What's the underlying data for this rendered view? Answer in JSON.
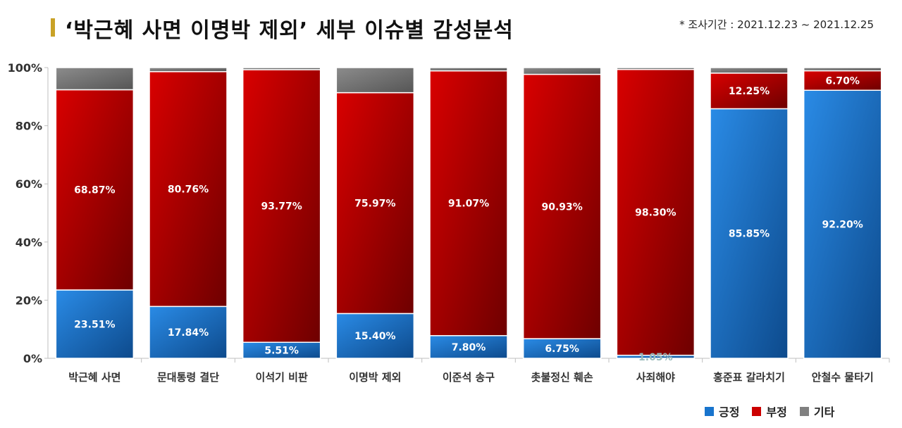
{
  "header": {
    "title": "‘박근혜 사면 이명박 제외’ 세부 이슈별 감성분석",
    "period": "* 조사기간 : 2021.12.23 ~ 2021.12.25"
  },
  "colors": {
    "positive": "#1874cd",
    "positive_dark": "#0d4a8c",
    "negative": "#cc0000",
    "negative_dark": "#7a0000",
    "other": "#808080",
    "other_dark": "#555555",
    "accent": "#c9a227"
  },
  "chart_data": {
    "type": "bar",
    "stacked": true,
    "title": "‘박근혜 사면 이명박 제외’ 세부 이슈별 감성분석",
    "xlabel": "",
    "ylabel": "",
    "ylim": [
      0,
      100
    ],
    "y_ticks": [
      "0%",
      "20%",
      "40%",
      "60%",
      "80%",
      "100%"
    ],
    "categories": [
      "박근혜 사면",
      "문대통령 결단",
      "이석기 비판",
      "이명박 제외",
      "이준석 송구",
      "촛불정신 훼손",
      "사죄해야",
      "홍준표 갈라치기",
      "안철수 물타기"
    ],
    "series": [
      {
        "name": "긍정",
        "values": [
          23.51,
          17.84,
          5.51,
          15.4,
          7.8,
          6.75,
          1.05,
          85.85,
          92.2
        ],
        "labels": [
          "23.51%",
          "17.84%",
          "5.51%",
          "15.40%",
          "7.80%",
          "6.75%",
          "1.05%",
          "85.85%",
          "92.20%"
        ]
      },
      {
        "name": "부정",
        "values": [
          68.87,
          80.76,
          93.77,
          75.97,
          91.07,
          90.93,
          98.3,
          12.25,
          6.7
        ],
        "labels": [
          "68.87%",
          "80.76%",
          "93.77%",
          "75.97%",
          "91.07%",
          "90.93%",
          "98.30%",
          "12.25%",
          "6.70%"
        ]
      },
      {
        "name": "기타",
        "values": [
          7.62,
          1.4,
          0.72,
          8.63,
          1.13,
          2.32,
          0.65,
          1.9,
          1.1
        ],
        "labels": [
          "",
          "",
          "",
          "",
          "",
          "",
          "",
          "",
          ""
        ]
      }
    ],
    "legend": "bottom-right",
    "grid": false
  }
}
